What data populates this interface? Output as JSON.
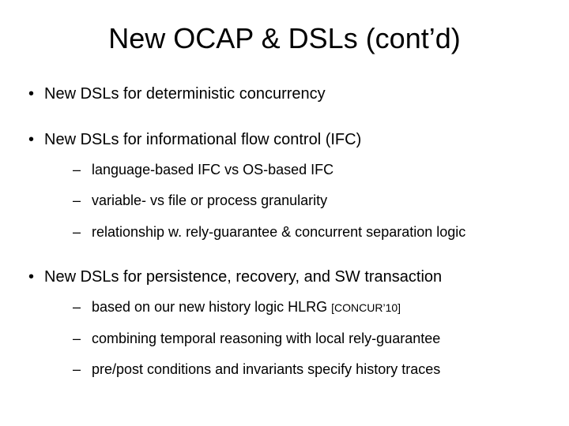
{
  "slide": {
    "title": "New OCAP & DSLs (cont’d)",
    "bullets": [
      {
        "text": "New DSLs for deterministic concurrency",
        "children": []
      },
      {
        "text": "New DSLs for informational flow control (IFC)",
        "children": [
          {
            "text": "language-based IFC vs OS-based IFC"
          },
          {
            "text": "variable- vs file or process granularity"
          },
          {
            "text": "relationship w. rely-guarantee & concurrent separation logic"
          }
        ]
      },
      {
        "text": "New DSLs for persistence, recovery, and SW transaction",
        "children": [
          {
            "text": "based on our new history logic HLRG ",
            "citation": "[CONCUR’10]"
          },
          {
            "text": "combining temporal reasoning with local rely-guarantee"
          },
          {
            "text": "pre/post conditions and invariants specify history traces"
          }
        ]
      }
    ]
  },
  "style": {
    "background_color": "#ffffff",
    "text_color": "#000000",
    "title_fontsize": 36,
    "level1_fontsize": 20,
    "level2_fontsize": 18,
    "citation_fontsize": 14,
    "font_family": "Arial"
  }
}
